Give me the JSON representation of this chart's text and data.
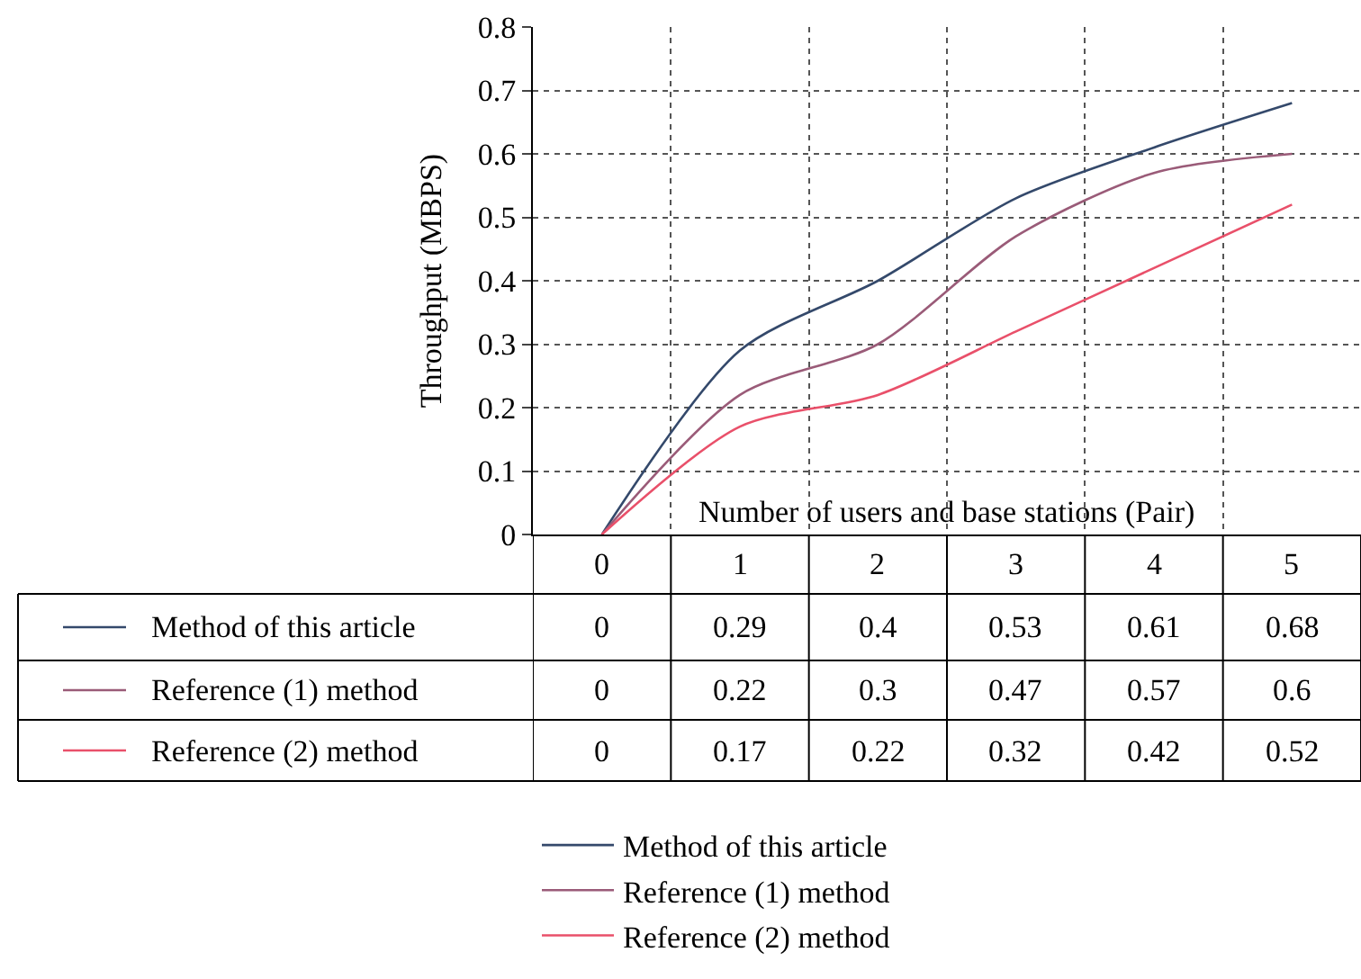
{
  "chart_data": {
    "type": "line",
    "xlabel": "Number of users and base stations (Pair)",
    "ylabel": "Throughput (MBPS)",
    "categories": [
      "0",
      "1",
      "2",
      "3",
      "4",
      "5"
    ],
    "series": [
      {
        "name": "Method of this article",
        "color": "#34496b",
        "values": [
          0,
          0.29,
          0.4,
          0.53,
          0.61,
          0.68
        ]
      },
      {
        "name": "Reference (1) method",
        "color": "#9a5b78",
        "values": [
          0,
          0.22,
          0.3,
          0.47,
          0.57,
          0.6
        ]
      },
      {
        "name": "Reference (2) method",
        "color": "#e9506a",
        "values": [
          0,
          0.17,
          0.22,
          0.32,
          0.42,
          0.52
        ]
      }
    ],
    "ylim": [
      0,
      0.8
    ],
    "yticks": [
      0,
      0.1,
      0.2,
      0.3,
      0.4,
      0.5,
      0.6,
      0.7,
      0.8
    ],
    "grid": true,
    "legend": "bottom",
    "data_labels": true,
    "tick_labels": "y",
    "marker": "none",
    "line_style": "solid"
  }
}
